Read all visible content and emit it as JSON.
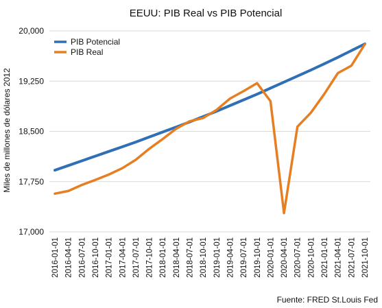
{
  "chart_data": {
    "type": "line",
    "title": "EEUU: PIB Real vs PIB Potencial",
    "xlabel": "",
    "ylabel": "Miles de millones de dólares 2012",
    "source": "Fuente: FRED St.Louis Fed",
    "ylim": [
      17000,
      20000
    ],
    "yticks": [
      "17,000",
      "17,750",
      "18,500",
      "19,250",
      "20,000"
    ],
    "ytick_values": [
      17000,
      17750,
      18500,
      19250,
      20000
    ],
    "grid": true,
    "legend_position": "top-left",
    "x": [
      "2016-01-01",
      "2016-04-01",
      "2016-07-01",
      "2016-10-01",
      "2017-01-01",
      "2017-04-01",
      "2017-07-01",
      "2017-10-01",
      "2018-01-01",
      "2018-04-01",
      "2018-07-01",
      "2018-10-01",
      "2019-01-01",
      "2019-04-01",
      "2019-07-01",
      "2019-10-01",
      "2020-01-01",
      "2020-04-01",
      "2020-07-01",
      "2020-10-01",
      "2021-01-01",
      "2021-04-01",
      "2021-07-01",
      "2021-10-01"
    ],
    "series": [
      {
        "name": "PIB Potencial",
        "color": "#2f6fb5",
        "values": [
          17920,
          17990,
          18060,
          18130,
          18200,
          18270,
          18340,
          18415,
          18490,
          18565,
          18640,
          18720,
          18800,
          18885,
          18970,
          19055,
          19145,
          19235,
          19325,
          19415,
          19510,
          19605,
          19705,
          19805
        ]
      },
      {
        "name": "PIB Real",
        "color": "#e67e22",
        "values": [
          17570,
          17610,
          17700,
          17775,
          17855,
          17950,
          18075,
          18240,
          18385,
          18540,
          18650,
          18700,
          18820,
          18990,
          19100,
          19220,
          18950,
          17280,
          18570,
          18780,
          19060,
          19370,
          19480,
          19800
        ]
      }
    ]
  }
}
